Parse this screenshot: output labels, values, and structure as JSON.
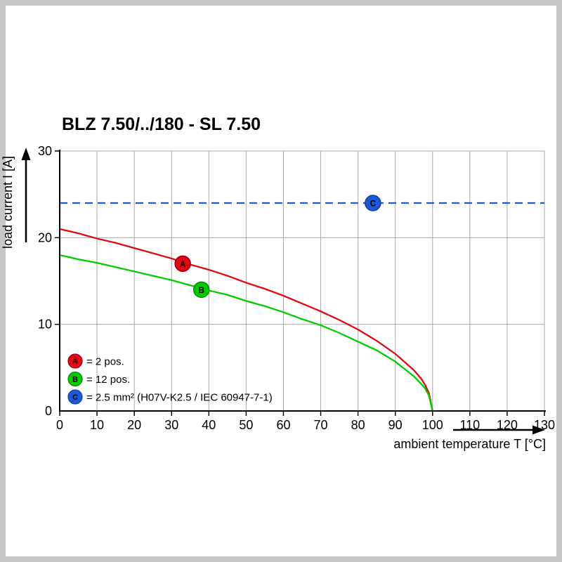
{
  "chart_data": {
    "type": "line",
    "title": "BLZ 7.50/../180 - SL 7.50",
    "xlabel": "ambient temperature T [°C]",
    "ylabel": "load current I [A]",
    "xlim": [
      0,
      130
    ],
    "ylim": [
      0,
      30
    ],
    "x_ticks": [
      0,
      10,
      20,
      30,
      40,
      50,
      60,
      70,
      80,
      90,
      100,
      110,
      120,
      130
    ],
    "y_ticks": [
      0,
      10,
      20,
      30
    ],
    "grid": true,
    "grid_color": "#a9a9a9",
    "legend_position": "lower-left",
    "series": [
      {
        "key": "A",
        "label": "2 pos.",
        "color": "#e30613",
        "dark": "#9b0012",
        "line": "solid",
        "x": [
          0,
          5,
          10,
          15,
          20,
          25,
          30,
          35,
          40,
          45,
          50,
          55,
          60,
          65,
          70,
          75,
          80,
          85,
          90,
          95,
          97,
          98,
          99,
          100
        ],
        "y": [
          21,
          20.5,
          19.9,
          19.4,
          18.8,
          18.2,
          17.6,
          16.9,
          16.3,
          15.6,
          14.8,
          14.1,
          13.3,
          12.4,
          11.5,
          10.5,
          9.4,
          8.1,
          6.6,
          4.7,
          3.7,
          3.0,
          2.1,
          0
        ],
        "marker": {
          "t": 33,
          "i": 17
        }
      },
      {
        "key": "B",
        "label": "12 pos.",
        "color": "#00cc00",
        "dark": "#008f00",
        "line": "solid",
        "x": [
          0,
          5,
          10,
          15,
          20,
          25,
          30,
          35,
          40,
          45,
          50,
          55,
          60,
          65,
          70,
          75,
          80,
          85,
          90,
          95,
          97,
          98,
          99,
          100
        ],
        "y": [
          18,
          17.5,
          17.1,
          16.6,
          16.1,
          15.6,
          15.1,
          14.5,
          13.9,
          13.4,
          12.7,
          12.1,
          11.4,
          10.6,
          9.9,
          9.0,
          8.0,
          7.0,
          5.7,
          4.0,
          3.1,
          2.6,
          1.8,
          0
        ],
        "marker": {
          "t": 38,
          "i": 14
        }
      },
      {
        "key": "C",
        "label": "2.5 mm² (H07V-K2.5 / IEC 60947-7-1)",
        "color": "#1a5ad7",
        "dark": "#123f97",
        "line": "dashed",
        "x": [
          0,
          130
        ],
        "y": [
          24,
          24
        ],
        "marker": {
          "t": 84,
          "i": 24
        }
      }
    ],
    "legend": [
      {
        "key": "A",
        "color": "#e30613",
        "dark": "#9b0012",
        "text": "= 2 pos."
      },
      {
        "key": "B",
        "color": "#00cc00",
        "dark": "#008f00",
        "text": "= 12 pos."
      },
      {
        "key": "C",
        "color": "#1a5ad7",
        "dark": "#123f97",
        "text": "= 2.5 mm² (H07V-K2.5 / IEC 60947-7-1)"
      }
    ]
  }
}
